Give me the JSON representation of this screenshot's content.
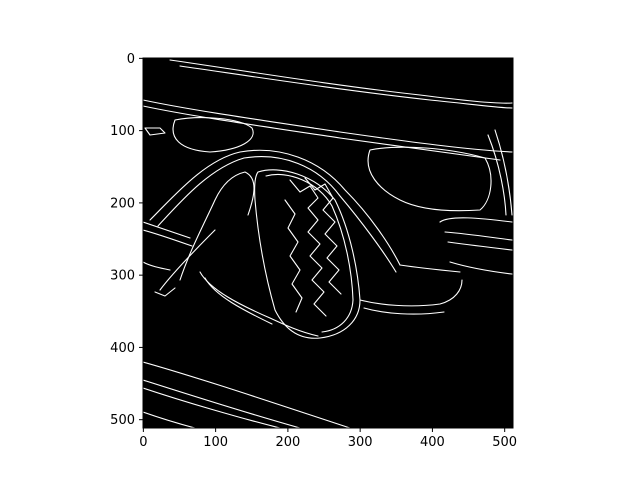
{
  "chart_data": {
    "type": "image",
    "title": "",
    "xlabel": "",
    "ylabel": "",
    "xlim": [
      0,
      511
    ],
    "ylim": [
      511,
      0
    ],
    "x_ticks": [
      0,
      100,
      200,
      300,
      400,
      500
    ],
    "y_ticks": [
      0,
      100,
      200,
      300,
      400,
      500
    ],
    "grid": false,
    "colormap": "gray",
    "background_color": "#000000",
    "edge_color": "#ffffff"
  }
}
